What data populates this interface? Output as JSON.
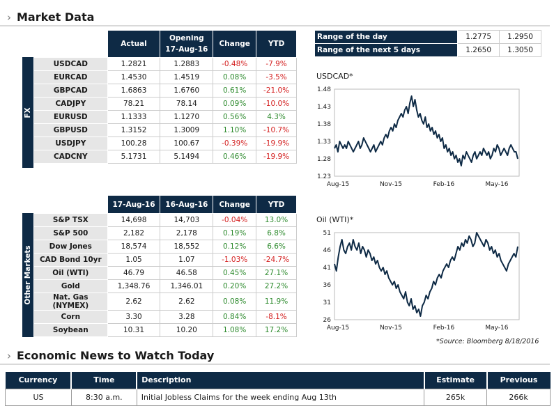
{
  "sections": {
    "market_data": "Market Data",
    "economic_news": "Economic News to Watch Today"
  },
  "fx": {
    "label": "FX",
    "headers": [
      "Actual",
      "Opening\n17-Aug-16",
      "Change",
      "YTD"
    ],
    "rows": [
      {
        "name": "USDCAD",
        "actual": "1.2821",
        "open": "1.2883",
        "change": "-0.48%",
        "ytd": "-7.9%"
      },
      {
        "name": "EURCAD",
        "actual": "1.4530",
        "open": "1.4519",
        "change": "0.08%",
        "ytd": "-3.5%"
      },
      {
        "name": "GBPCAD",
        "actual": "1.6863",
        "open": "1.6760",
        "change": "0.61%",
        "ytd": "-21.0%"
      },
      {
        "name": "CADJPY",
        "actual": "78.21",
        "open": "78.14",
        "change": "0.09%",
        "ytd": "-10.0%"
      },
      {
        "name": "EURUSD",
        "actual": "1.1333",
        "open": "1.1270",
        "change": "0.56%",
        "ytd": "4.3%"
      },
      {
        "name": "GBPUSD",
        "actual": "1.3152",
        "open": "1.3009",
        "change": "1.10%",
        "ytd": "-10.7%"
      },
      {
        "name": "USDJPY",
        "actual": "100.28",
        "open": "100.67",
        "change": "-0.39%",
        "ytd": "-19.9%"
      },
      {
        "name": "CADCNY",
        "actual": "5.1731",
        "open": "5.1494",
        "change": "0.46%",
        "ytd": "-19.9%"
      }
    ]
  },
  "other": {
    "label": "Other Markets",
    "headers": [
      "17-Aug-16",
      "16-Aug-16",
      "Change",
      "YTD"
    ],
    "rows": [
      {
        "name": "S&P TSX",
        "actual": "14,698",
        "open": "14,703",
        "change": "-0.04%",
        "ytd": "13.0%"
      },
      {
        "name": "S&P 500",
        "actual": "2,182",
        "open": "2,178",
        "change": "0.19%",
        "ytd": "6.8%"
      },
      {
        "name": "Dow Jones",
        "actual": "18,574",
        "open": "18,552",
        "change": "0.12%",
        "ytd": "6.6%"
      },
      {
        "name": "CAD Bond 10yr",
        "actual": "1.05",
        "open": "1.07",
        "change": "-1.03%",
        "ytd": "-24.7%"
      },
      {
        "name": "Oil (WTI)",
        "actual": "46.79",
        "open": "46.58",
        "change": "0.45%",
        "ytd": "27.1%"
      },
      {
        "name": "Gold",
        "actual": "1,348.76",
        "open": "1,346.01",
        "change": "0.20%",
        "ytd": "27.2%"
      },
      {
        "name": "Nat. Gas (NYMEX)",
        "actual": "2.62",
        "open": "2.62",
        "change": "0.08%",
        "ytd": "11.9%"
      },
      {
        "name": "Corn",
        "actual": "3.30",
        "open": "3.28",
        "change": "0.84%",
        "ytd": "-8.1%"
      },
      {
        "name": "Soybean",
        "actual": "10.31",
        "open": "10.20",
        "change": "1.08%",
        "ytd": "17.2%"
      }
    ]
  },
  "range": {
    "rows": [
      {
        "label": "Range of the day",
        "low": "1.2775",
        "high": "1.2950"
      },
      {
        "label": "Range of the next 5 days",
        "low": "1.2650",
        "high": "1.3050"
      }
    ]
  },
  "colors": {
    "header_navy": "#0e2a45",
    "line": "#0e2a45",
    "positive": "#2e8b2e",
    "negative": "#d42020"
  },
  "chart_data": [
    {
      "type": "line",
      "title": "USDCAD*",
      "xticks": [
        "Aug-15",
        "Nov-15",
        "Feb-16",
        "May-16"
      ],
      "yticks": [
        "1.48",
        "1.43",
        "1.38",
        "1.33",
        "1.28",
        "1.23"
      ],
      "ylim": [
        1.23,
        1.48
      ],
      "values": [
        1.31,
        1.32,
        1.3,
        1.33,
        1.32,
        1.31,
        1.32,
        1.31,
        1.33,
        1.32,
        1.31,
        1.3,
        1.31,
        1.32,
        1.33,
        1.31,
        1.32,
        1.34,
        1.33,
        1.32,
        1.31,
        1.3,
        1.31,
        1.32,
        1.3,
        1.31,
        1.32,
        1.33,
        1.32,
        1.34,
        1.35,
        1.34,
        1.36,
        1.37,
        1.36,
        1.38,
        1.37,
        1.39,
        1.4,
        1.41,
        1.4,
        1.42,
        1.43,
        1.41,
        1.44,
        1.46,
        1.43,
        1.45,
        1.42,
        1.4,
        1.41,
        1.39,
        1.38,
        1.4,
        1.37,
        1.38,
        1.36,
        1.37,
        1.35,
        1.36,
        1.34,
        1.35,
        1.33,
        1.34,
        1.31,
        1.32,
        1.3,
        1.31,
        1.29,
        1.3,
        1.28,
        1.29,
        1.27,
        1.28,
        1.26,
        1.29,
        1.28,
        1.3,
        1.29,
        1.28,
        1.27,
        1.29,
        1.3,
        1.28,
        1.29,
        1.3,
        1.29,
        1.31,
        1.3,
        1.29,
        1.3,
        1.28,
        1.29,
        1.31,
        1.3,
        1.32,
        1.31,
        1.29,
        1.3,
        1.31,
        1.3,
        1.29,
        1.31,
        1.32,
        1.31,
        1.3,
        1.3,
        1.28
      ]
    },
    {
      "type": "line",
      "title": "Oil (WTI)*",
      "xticks": [
        "Aug-15",
        "Nov-15",
        "Feb-16",
        "May-16"
      ],
      "yticks": [
        "51",
        "46",
        "41",
        "36",
        "31",
        "26"
      ],
      "ylim": [
        26,
        51
      ],
      "values": [
        42,
        40,
        44,
        47,
        49,
        46,
        45,
        47,
        48,
        46,
        49,
        47,
        46,
        48,
        45,
        47,
        46,
        44,
        46,
        45,
        43,
        44,
        42,
        43,
        41,
        40,
        41,
        39,
        40,
        38,
        37,
        36,
        37,
        35,
        36,
        34,
        33,
        32,
        34,
        31,
        30,
        32,
        29,
        30,
        28,
        29,
        27,
        30,
        31,
        33,
        32,
        34,
        35,
        37,
        36,
        38,
        39,
        38,
        40,
        41,
        42,
        41,
        43,
        44,
        43,
        45,
        47,
        46,
        48,
        47,
        49,
        48,
        50,
        49,
        47,
        48,
        51,
        50,
        49,
        48,
        47,
        49,
        48,
        46,
        47,
        45,
        46,
        44,
        45,
        43,
        42,
        41,
        40,
        42,
        43,
        44,
        45,
        44,
        47
      ]
    }
  ],
  "source_note": "*Source: Bloomberg  8/18/2016",
  "news": {
    "headers": [
      "Currency",
      "Time",
      "Description",
      "Estimate",
      "Previous"
    ],
    "rows": [
      {
        "currency": "US",
        "time": "8:30 a.m.",
        "desc": "Initial Jobless Claims for the week ending Aug 13th",
        "estimate": "265k",
        "previous": "266k"
      }
    ]
  }
}
